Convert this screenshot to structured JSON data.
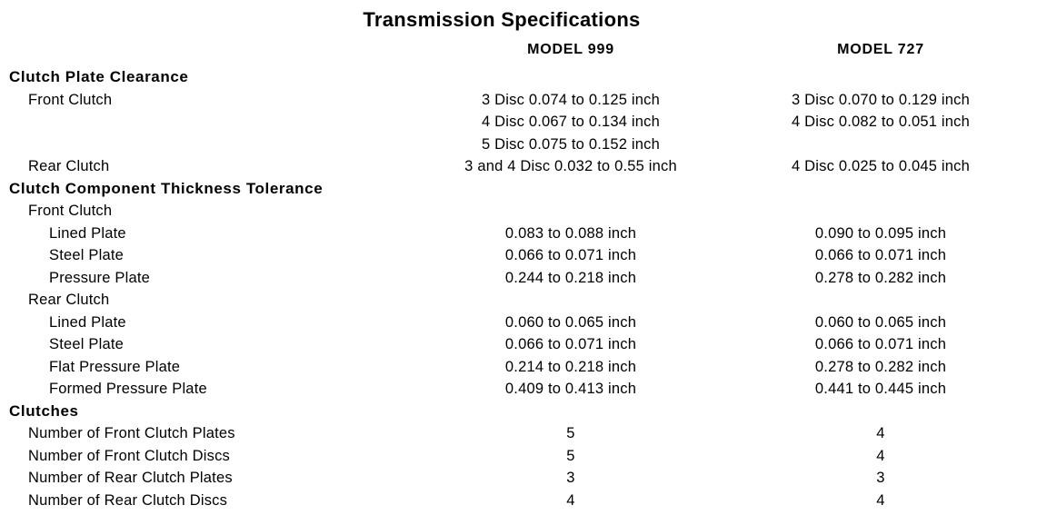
{
  "page": {
    "title": "Transmission Specifications",
    "background": "#ffffff",
    "text_color": "#000000"
  },
  "table": {
    "column_headers": [
      "MODEL 999",
      "MODEL 727"
    ],
    "rows": [
      {
        "label": "Clutch Plate Clearance",
        "indent": 0,
        "bold": true,
        "model999": [],
        "model727": []
      },
      {
        "label": "Front Clutch",
        "indent": 1,
        "bold": false,
        "model999": [
          "3 Disc 0.074 to 0.125 inch",
          "4 Disc 0.067 to 0.134 inch",
          "5 Disc 0.075 to 0.152 inch"
        ],
        "model727": [
          "3 Disc 0.070 to 0.129 inch",
          "4 Disc 0.082 to 0.051 inch"
        ]
      },
      {
        "label": "Rear Clutch",
        "indent": 1,
        "bold": false,
        "model999": [
          "3 and 4 Disc 0.032 to 0.55 inch"
        ],
        "model727": [
          "4 Disc 0.025 to 0.045 inch"
        ]
      },
      {
        "label": "Clutch Component Thickness Tolerance",
        "indent": 0,
        "bold": true,
        "model999": [],
        "model727": []
      },
      {
        "label": "Front Clutch",
        "indent": 1,
        "bold": false,
        "model999": [],
        "model727": []
      },
      {
        "label": "Lined Plate",
        "indent": 2,
        "bold": false,
        "model999": [
          "0.083 to 0.088 inch"
        ],
        "model727": [
          "0.090 to 0.095 inch"
        ]
      },
      {
        "label": "Steel Plate",
        "indent": 2,
        "bold": false,
        "model999": [
          "0.066 to 0.071 inch"
        ],
        "model727": [
          "0.066 to 0.071 inch"
        ]
      },
      {
        "label": "Pressure Plate",
        "indent": 2,
        "bold": false,
        "model999": [
          "0.244 to 0.218 inch"
        ],
        "model727": [
          "0.278 to 0.282 inch"
        ]
      },
      {
        "label": "Rear Clutch",
        "indent": 1,
        "bold": false,
        "model999": [],
        "model727": []
      },
      {
        "label": "Lined Plate",
        "indent": 2,
        "bold": false,
        "model999": [
          "0.060 to 0.065 inch"
        ],
        "model727": [
          "0.060 to 0.065 inch"
        ]
      },
      {
        "label": "Steel Plate",
        "indent": 2,
        "bold": false,
        "model999": [
          "0.066 to 0.071 inch"
        ],
        "model727": [
          "0.066 to 0.071 inch"
        ]
      },
      {
        "label": "Flat Pressure Plate",
        "indent": 2,
        "bold": false,
        "model999": [
          "0.214 to 0.218 inch"
        ],
        "model727": [
          "0.278 to 0.282 inch"
        ]
      },
      {
        "label": "Formed Pressure Plate",
        "indent": 2,
        "bold": false,
        "model999": [
          "0.409 to 0.413 inch"
        ],
        "model727": [
          "0.441 to 0.445 inch"
        ]
      },
      {
        "label": "Clutches",
        "indent": 0,
        "bold": true,
        "model999": [],
        "model727": []
      },
      {
        "label": "Number of Front Clutch Plates",
        "indent": 1,
        "bold": false,
        "model999": [
          "5"
        ],
        "model727": [
          "4"
        ]
      },
      {
        "label": "Number of Front Clutch Discs",
        "indent": 1,
        "bold": false,
        "model999": [
          "5"
        ],
        "model727": [
          "4"
        ]
      },
      {
        "label": "Number of Rear Clutch Plates",
        "indent": 1,
        "bold": false,
        "model999": [
          "3"
        ],
        "model727": [
          "3"
        ]
      },
      {
        "label": "Number of Rear Clutch Discs",
        "indent": 1,
        "bold": false,
        "model999": [
          "4"
        ],
        "model727": [
          "4"
        ]
      }
    ]
  }
}
